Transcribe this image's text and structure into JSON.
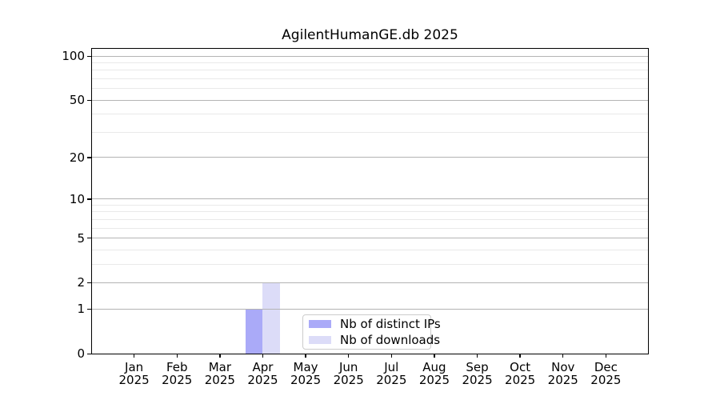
{
  "title": "AgilentHumanGE.db 2025",
  "chart_data": {
    "type": "bar",
    "title": "AgilentHumanGE.db 2025",
    "categories": [
      "Jan",
      "Feb",
      "Mar",
      "Apr",
      "May",
      "Jun",
      "Jul",
      "Aug",
      "Sep",
      "Oct",
      "Nov",
      "Dec"
    ],
    "x_tick_second_line": "2025",
    "series": [
      {
        "name": "Nb of distinct IPs",
        "color": "#aaaaf8",
        "values": [
          0,
          0,
          0,
          1,
          0,
          0,
          0,
          0,
          0,
          0,
          0,
          0
        ]
      },
      {
        "name": "Nb of downloads",
        "color": "#dcdcf8",
        "values": [
          0,
          0,
          0,
          2,
          0,
          0,
          0,
          0,
          0,
          0,
          0,
          0
        ]
      }
    ],
    "xlabel": "",
    "ylabel": "",
    "y_scale": "log1p",
    "ylim": [
      0,
      113.4
    ],
    "y_major_ticks": [
      0,
      1,
      2,
      5,
      10,
      20,
      50,
      100
    ],
    "y_minor_gridlines": [
      3,
      4,
      6,
      7,
      8,
      9,
      30,
      40,
      60,
      70,
      80,
      90
    ],
    "grid": "on",
    "legend_position": "lower center"
  },
  "colors": {
    "major_grid": "#b4b4b4",
    "minor_grid": "#e9e9e9",
    "spine": "#000000",
    "background": "#ffffff",
    "bar_distinct_ips": "#aaaaf8",
    "bar_downloads": "#dcdcf8"
  }
}
